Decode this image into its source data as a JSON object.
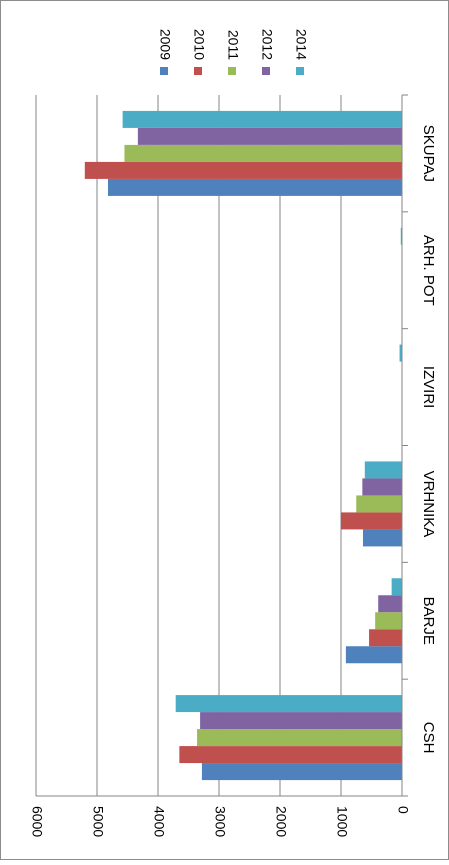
{
  "chart_data": {
    "type": "bar",
    "orientation": "horizontal",
    "categories": [
      "CSH",
      "BARJE",
      "VRHNIKA",
      "IZVIRI",
      "ARH. POT",
      "SKUPAJ"
    ],
    "series": [
      {
        "name": "2009",
        "color": "#4F81BD",
        "values": [
          3280,
          920,
          640,
          0,
          0,
          4820
        ]
      },
      {
        "name": "2010",
        "color": "#C0504D",
        "values": [
          3650,
          540,
          1000,
          0,
          0,
          5200
        ]
      },
      {
        "name": "2011",
        "color": "#9BBB59",
        "values": [
          3360,
          440,
          750,
          0,
          0,
          4550
        ]
      },
      {
        "name": "2012",
        "color": "#8064A2",
        "values": [
          3310,
          390,
          650,
          0,
          0,
          4330
        ]
      },
      {
        "name": "2014",
        "color": "#4BACC6",
        "values": [
          3710,
          170,
          610,
          40,
          20,
          4580
        ]
      }
    ],
    "ticks": [
      "0",
      "1000",
      "2000",
      "3000",
      "4000",
      "5000",
      "6000"
    ],
    "xlim": [
      0,
      6000
    ],
    "title": "",
    "xlabel": "",
    "ylabel": "",
    "grid": true,
    "legend": "top"
  }
}
